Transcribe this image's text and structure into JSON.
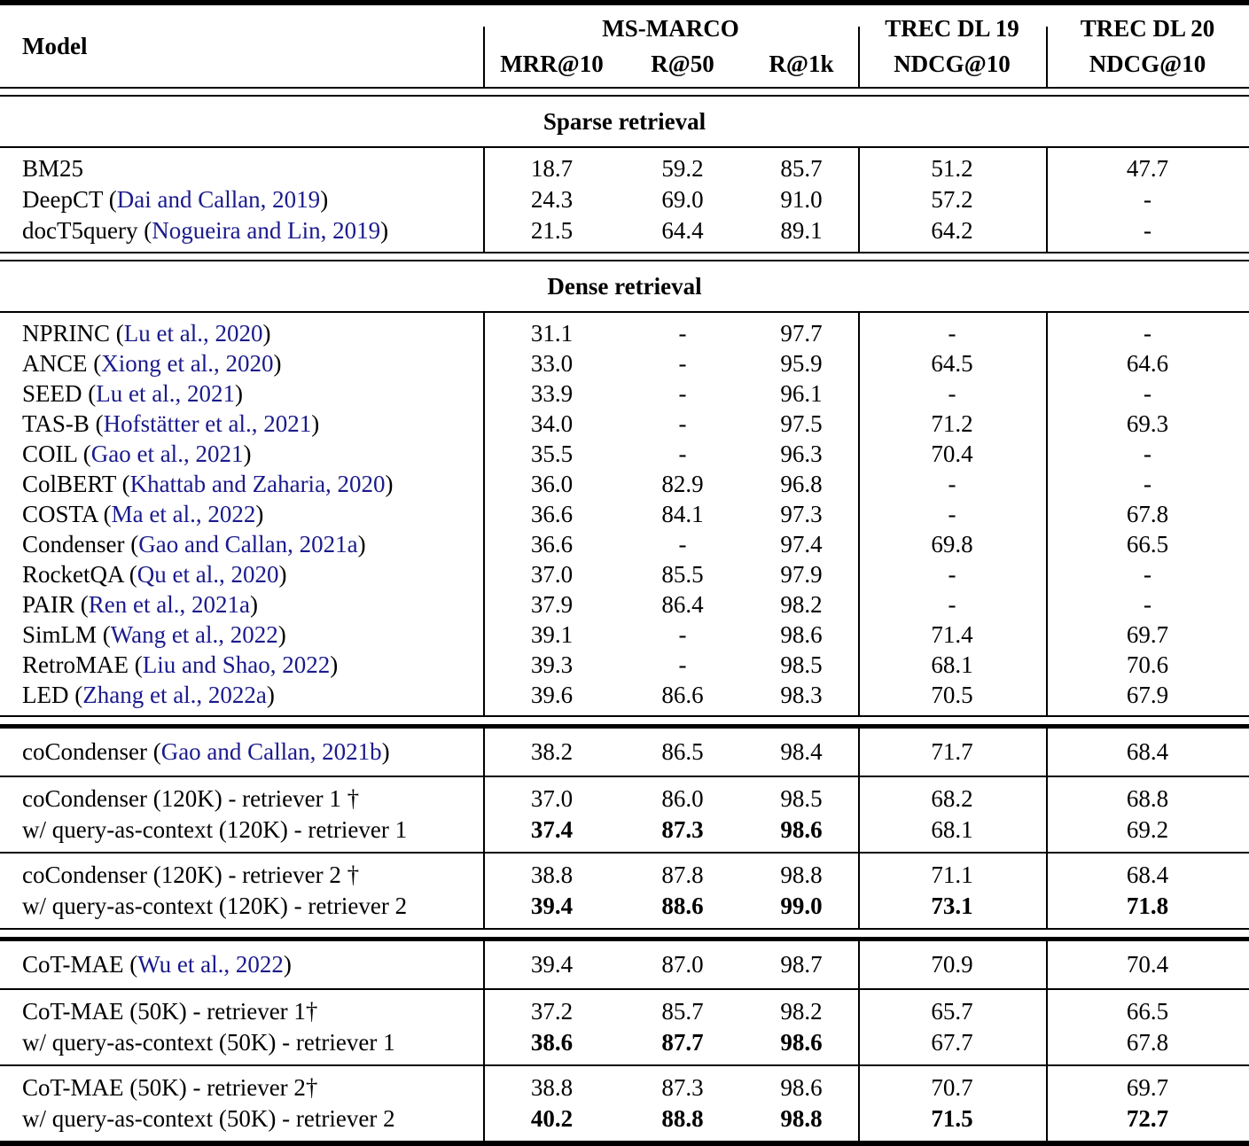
{
  "header": {
    "model_label": "Model",
    "groups": {
      "msmarco": "MS-MARCO",
      "dl19": "TREC DL 19",
      "dl20": "TREC DL 20"
    },
    "subcolumns": {
      "mrr10": "MRR@10",
      "r50": "R@50",
      "r1k": "R@1k",
      "ndcg19": "NDCG@10",
      "ndcg20": "NDCG@10"
    }
  },
  "colors": {
    "citation": "#1a1a8c",
    "text": "#000000",
    "rule": "#000000"
  },
  "blocks": [
    {
      "kind": "band",
      "rule_above": "double",
      "label": "Sparse retrieval"
    },
    {
      "kind": "rows",
      "rule_above": "single",
      "pad": "normal",
      "rows": [
        {
          "name": "BM25",
          "cite": "",
          "values": [
            "18.7",
            "59.2",
            "85.7",
            "51.2",
            "47.7"
          ],
          "bold": [
            false,
            false,
            false,
            false,
            false
          ]
        },
        {
          "name": "DeepCT",
          "cite": "Dai and Callan, 2019",
          "values": [
            "24.3",
            "69.0",
            "91.0",
            "57.2",
            "-"
          ],
          "bold": [
            false,
            false,
            false,
            false,
            false
          ]
        },
        {
          "name": "docT5query",
          "cite": "Nogueira and Lin, 2019",
          "values": [
            "21.5",
            "64.4",
            "89.1",
            "64.2",
            "-"
          ],
          "bold": [
            false,
            false,
            false,
            false,
            false
          ]
        }
      ]
    },
    {
      "kind": "band",
      "rule_above": "double",
      "label": "Dense retrieval"
    },
    {
      "kind": "rows",
      "rule_above": "single",
      "pad": "dense",
      "rows": [
        {
          "name": "NPRINC",
          "cite": "Lu et al., 2020",
          "values": [
            "31.1",
            "-",
            "97.7",
            "-",
            "-"
          ],
          "bold": [
            false,
            false,
            false,
            false,
            false
          ]
        },
        {
          "name": "ANCE",
          "cite": "Xiong et al., 2020",
          "values": [
            "33.0",
            "-",
            "95.9",
            "64.5",
            "64.6"
          ],
          "bold": [
            false,
            false,
            false,
            false,
            false
          ]
        },
        {
          "name": "SEED",
          "cite": "Lu et al., 2021",
          "values": [
            "33.9",
            "-",
            "96.1",
            "-",
            "-"
          ],
          "bold": [
            false,
            false,
            false,
            false,
            false
          ]
        },
        {
          "name": "TAS-B",
          "cite": "Hofstätter et al., 2021",
          "values": [
            "34.0",
            "-",
            "97.5",
            "71.2",
            "69.3"
          ],
          "bold": [
            false,
            false,
            false,
            false,
            false
          ]
        },
        {
          "name": "COIL",
          "cite": "Gao et al., 2021",
          "values": [
            "35.5",
            "-",
            "96.3",
            "70.4",
            "-"
          ],
          "bold": [
            false,
            false,
            false,
            false,
            false
          ]
        },
        {
          "name": "ColBERT",
          "cite": "Khattab and Zaharia, 2020",
          "values": [
            "36.0",
            "82.9",
            "96.8",
            "-",
            "-"
          ],
          "bold": [
            false,
            false,
            false,
            false,
            false
          ]
        },
        {
          "name": "COSTA",
          "cite": "Ma et al., 2022",
          "values": [
            "36.6",
            "84.1",
            "97.3",
            "-",
            "67.8"
          ],
          "bold": [
            false,
            false,
            false,
            false,
            false
          ]
        },
        {
          "name": "Condenser",
          "cite": "Gao and Callan, 2021a",
          "values": [
            "36.6",
            "-",
            "97.4",
            "69.8",
            "66.5"
          ],
          "bold": [
            false,
            false,
            false,
            false,
            false
          ]
        },
        {
          "name": "RocketQA",
          "cite": "Qu et al., 2020",
          "values": [
            "37.0",
            "85.5",
            "97.9",
            "-",
            "-"
          ],
          "bold": [
            false,
            false,
            false,
            false,
            false
          ]
        },
        {
          "name": "PAIR",
          "cite": "Ren et al., 2021a",
          "values": [
            "37.9",
            "86.4",
            "98.2",
            "-",
            "-"
          ],
          "bold": [
            false,
            false,
            false,
            false,
            false
          ]
        },
        {
          "name": "SimLM",
          "cite": "Wang et al., 2022",
          "values": [
            "39.1",
            "-",
            "98.6",
            "71.4",
            "69.7"
          ],
          "bold": [
            false,
            false,
            false,
            false,
            false
          ]
        },
        {
          "name": "RetroMAE",
          "cite": "Liu and Shao, 2022",
          "values": [
            "39.3",
            "-",
            "98.5",
            "68.1",
            "70.6"
          ],
          "bold": [
            false,
            false,
            false,
            false,
            false
          ]
        },
        {
          "name": "LED",
          "cite": "Zhang et al., 2022a",
          "values": [
            "39.6",
            "86.6",
            "98.3",
            "70.5",
            "67.9"
          ],
          "bold": [
            false,
            false,
            false,
            false,
            false
          ]
        }
      ]
    },
    {
      "kind": "rows",
      "rule_above": "heavy",
      "pad": "roomy",
      "rows": [
        {
          "name": "coCondenser",
          "cite": "Gao and Callan, 2021b",
          "values": [
            "38.2",
            "86.5",
            "98.4",
            "71.7",
            "68.4"
          ],
          "bold": [
            false,
            false,
            false,
            false,
            false
          ]
        }
      ]
    },
    {
      "kind": "rows",
      "rule_above": "single",
      "pad": "pair",
      "rows": [
        {
          "name": "coCondenser (120K) - retriever 1 †",
          "cite": "",
          "values": [
            "37.0",
            "86.0",
            "98.5",
            "68.2",
            "68.8"
          ],
          "bold": [
            false,
            false,
            false,
            false,
            false
          ]
        },
        {
          "name": "w/ query-as-context (120K) - retriever 1",
          "cite": "",
          "values": [
            "37.4",
            "87.3",
            "98.6",
            "68.1",
            "69.2"
          ],
          "bold": [
            true,
            true,
            true,
            false,
            false
          ]
        }
      ]
    },
    {
      "kind": "rows",
      "rule_above": "single",
      "pad": "pair",
      "rows": [
        {
          "name": "coCondenser (120K) - retriever 2 †",
          "cite": "",
          "values": [
            "38.8",
            "87.8",
            "98.8",
            "71.1",
            "68.4"
          ],
          "bold": [
            false,
            false,
            false,
            false,
            false
          ]
        },
        {
          "name": "w/ query-as-context (120K) - retriever 2",
          "cite": "",
          "values": [
            "39.4",
            "88.6",
            "99.0",
            "73.1",
            "71.8"
          ],
          "bold": [
            true,
            true,
            true,
            true,
            true
          ]
        }
      ]
    },
    {
      "kind": "rows",
      "rule_above": "heavy",
      "pad": "roomy",
      "rows": [
        {
          "name": "CoT-MAE",
          "cite": "Wu et al., 2022",
          "values": [
            "39.4",
            "87.0",
            "98.7",
            "70.9",
            "70.4"
          ],
          "bold": [
            false,
            false,
            false,
            false,
            false
          ]
        }
      ]
    },
    {
      "kind": "rows",
      "rule_above": "single",
      "pad": "pair",
      "rows": [
        {
          "name": "CoT-MAE (50K) - retriever 1†",
          "cite": "",
          "values": [
            "37.2",
            "85.7",
            "98.2",
            "65.7",
            "66.5"
          ],
          "bold": [
            false,
            false,
            false,
            false,
            false
          ]
        },
        {
          "name": "w/ query-as-context (50K) - retriever 1",
          "cite": "",
          "values": [
            "38.6",
            "87.7",
            "98.6",
            "67.7",
            "67.8"
          ],
          "bold": [
            true,
            true,
            true,
            false,
            false
          ]
        }
      ]
    },
    {
      "kind": "rows",
      "rule_above": "single",
      "pad": "pair",
      "rows": [
        {
          "name": "CoT-MAE (50K) - retriever 2†",
          "cite": "",
          "values": [
            "38.8",
            "87.3",
            "98.6",
            "70.7",
            "69.7"
          ],
          "bold": [
            false,
            false,
            false,
            false,
            false
          ]
        },
        {
          "name": "w/ query-as-context (50K) - retriever 2",
          "cite": "",
          "values": [
            "40.2",
            "88.8",
            "98.8",
            "71.5",
            "72.7"
          ],
          "bold": [
            true,
            true,
            true,
            true,
            true
          ]
        }
      ]
    }
  ],
  "rule_bottom": "thick"
}
